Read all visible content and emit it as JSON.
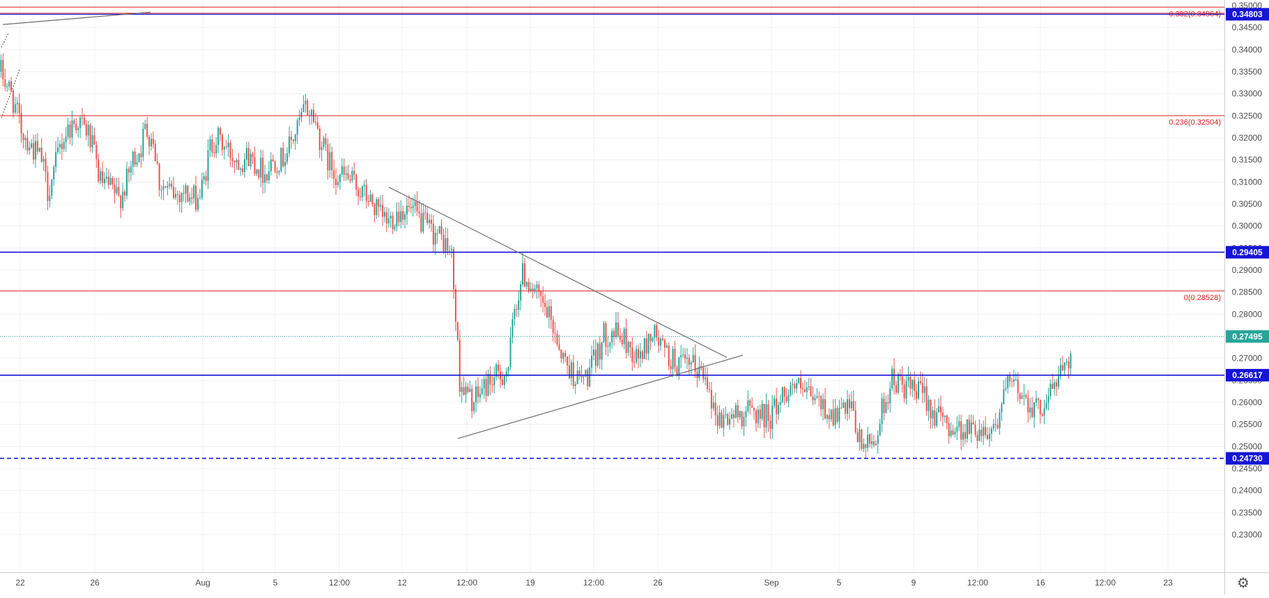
{
  "chart_data": {
    "type": "candlestick",
    "y_axis": {
      "min": 0.225,
      "max": 0.351,
      "ticks": [
        "0.35000",
        "0.34500",
        "0.34000",
        "0.33500",
        "0.33000",
        "0.32500",
        "0.32000",
        "0.31500",
        "0.31000",
        "0.30500",
        "0.30000",
        "0.29500",
        "0.29000",
        "0.28500",
        "0.28000",
        "0.27500",
        "0.27000",
        "0.26500",
        "0.26000",
        "0.25500",
        "0.25000",
        "0.24500",
        "0.24000",
        "0.23500",
        "0.23000"
      ]
    },
    "x_axis": {
      "labels": [
        "22",
        "26",
        "Aug",
        "5",
        "12:00",
        "12",
        "12:00",
        "19",
        "12:00",
        "26",
        "Sep",
        "5",
        "9",
        "12:00",
        "16",
        "12:00",
        "23"
      ]
    },
    "price_labels": [
      {
        "value": 0.34803,
        "text": "0.34803",
        "color": "#1515d6"
      },
      {
        "value": 0.29405,
        "text": "0.29405",
        "color": "#1515d6"
      },
      {
        "value": 0.27495,
        "text": "0.27495",
        "color": "#26a69a"
      },
      {
        "value": 0.26617,
        "text": "0.26617",
        "color": "#1515d6"
      },
      {
        "value": 0.2473,
        "text": "0.24730",
        "color": "#1515d6"
      }
    ],
    "fib_levels": [
      {
        "value": 0.34964,
        "text": "0.382(0.34964)"
      },
      {
        "value": 0.32504,
        "text": "0.236(0.32504)"
      },
      {
        "value": 0.28528,
        "text": "0(0.28528)"
      }
    ],
    "colors": {
      "up": "#26a69a",
      "down": "#ef5350",
      "fib": "#e01e1e",
      "support": "#1515d6",
      "last_price": "#26a69a",
      "grid": "#eef0f3",
      "trendline": "#6b6b6b"
    },
    "close_path": [
      [
        0,
        0.335
      ],
      [
        5,
        0.33
      ],
      [
        10,
        0.322
      ],
      [
        15,
        0.318
      ],
      [
        20,
        0.315
      ],
      [
        23,
        0.308
      ],
      [
        26,
        0.312
      ],
      [
        29,
        0.318
      ],
      [
        33,
        0.322
      ],
      [
        38,
        0.324
      ],
      [
        43,
        0.321
      ],
      [
        46,
        0.316
      ],
      [
        49,
        0.31
      ],
      [
        55,
        0.308
      ],
      [
        58,
        0.306
      ],
      [
        62,
        0.31
      ],
      [
        65,
        0.315
      ],
      [
        69,
        0.318
      ],
      [
        71,
        0.322
      ],
      [
        75,
        0.32
      ],
      [
        78,
        0.31
      ],
      [
        82,
        0.308
      ],
      [
        86,
        0.307
      ],
      [
        90,
        0.308
      ],
      [
        94,
        0.306
      ],
      [
        98,
        0.307
      ],
      [
        100,
        0.31
      ],
      [
        103,
        0.318
      ],
      [
        106,
        0.32
      ],
      [
        110,
        0.318
      ],
      [
        114,
        0.316
      ],
      [
        118,
        0.315
      ],
      [
        122,
        0.316
      ],
      [
        126,
        0.314
      ],
      [
        130,
        0.312
      ],
      [
        134,
        0.315
      ],
      [
        138,
        0.315
      ],
      [
        142,
        0.318
      ],
      [
        146,
        0.322
      ],
      [
        150,
        0.327
      ],
      [
        154,
        0.325
      ],
      [
        157,
        0.32
      ],
      [
        161,
        0.315
      ],
      [
        165,
        0.312
      ],
      [
        170,
        0.311
      ],
      [
        175,
        0.309
      ],
      [
        179,
        0.307
      ],
      [
        183,
        0.305
      ],
      [
        187,
        0.302
      ],
      [
        191,
        0.301
      ],
      [
        195,
        0.303
      ],
      [
        199,
        0.304
      ],
      [
        203,
        0.303
      ],
      [
        207,
        0.301
      ],
      [
        211,
        0.299
      ],
      [
        215,
        0.298
      ],
      [
        219,
        0.296
      ],
      [
        222,
        0.293
      ],
      [
        226,
        0.265
      ],
      [
        229,
        0.262
      ],
      [
        233,
        0.26
      ],
      [
        237,
        0.263
      ],
      [
        241,
        0.265
      ],
      [
        246,
        0.266
      ],
      [
        250,
        0.268
      ],
      [
        253,
        0.281
      ],
      [
        257,
        0.289
      ],
      [
        261,
        0.287
      ],
      [
        265,
        0.283
      ],
      [
        269,
        0.28
      ],
      [
        273,
        0.276
      ],
      [
        277,
        0.27
      ],
      [
        281,
        0.267
      ],
      [
        285,
        0.265
      ],
      [
        289,
        0.266
      ],
      [
        293,
        0.27
      ],
      [
        297,
        0.275
      ],
      [
        301,
        0.276
      ],
      [
        305,
        0.275
      ],
      [
        309,
        0.273
      ],
      [
        313,
        0.27
      ],
      [
        317,
        0.272
      ],
      [
        321,
        0.276
      ],
      [
        325,
        0.273
      ],
      [
        329,
        0.27
      ],
      [
        333,
        0.269
      ],
      [
        337,
        0.268
      ],
      [
        341,
        0.268
      ],
      [
        345,
        0.267
      ],
      [
        349,
        0.265
      ],
      [
        351,
        0.258
      ],
      [
        355,
        0.256
      ],
      [
        359,
        0.257
      ],
      [
        363,
        0.257
      ],
      [
        367,
        0.258
      ],
      [
        371,
        0.258
      ],
      [
        375,
        0.257
      ],
      [
        379,
        0.257
      ],
      [
        383,
        0.26
      ],
      [
        387,
        0.263
      ],
      [
        391,
        0.264
      ],
      [
        395,
        0.262
      ],
      [
        399,
        0.261
      ],
      [
        403,
        0.26
      ],
      [
        407,
        0.258
      ],
      [
        411,
        0.257
      ],
      [
        415,
        0.258
      ],
      [
        419,
        0.258
      ],
      [
        423,
        0.251
      ],
      [
        427,
        0.25
      ],
      [
        431,
        0.252
      ],
      [
        435,
        0.26
      ],
      [
        439,
        0.265
      ],
      [
        443,
        0.264
      ],
      [
        447,
        0.263
      ],
      [
        451,
        0.262
      ],
      [
        455,
        0.262
      ],
      [
        459,
        0.258
      ],
      [
        463,
        0.256
      ],
      [
        467,
        0.255
      ],
      [
        471,
        0.254
      ],
      [
        475,
        0.254
      ],
      [
        479,
        0.254
      ],
      [
        483,
        0.254
      ],
      [
        487,
        0.254
      ],
      [
        491,
        0.256
      ],
      [
        495,
        0.263
      ],
      [
        499,
        0.264
      ],
      [
        503,
        0.262
      ],
      [
        507,
        0.26
      ],
      [
        511,
        0.258
      ],
      [
        515,
        0.261
      ],
      [
        519,
        0.264
      ],
      [
        523,
        0.268
      ],
      [
        525,
        0.271
      ],
      [
        527,
        0.27
      ]
    ]
  }
}
